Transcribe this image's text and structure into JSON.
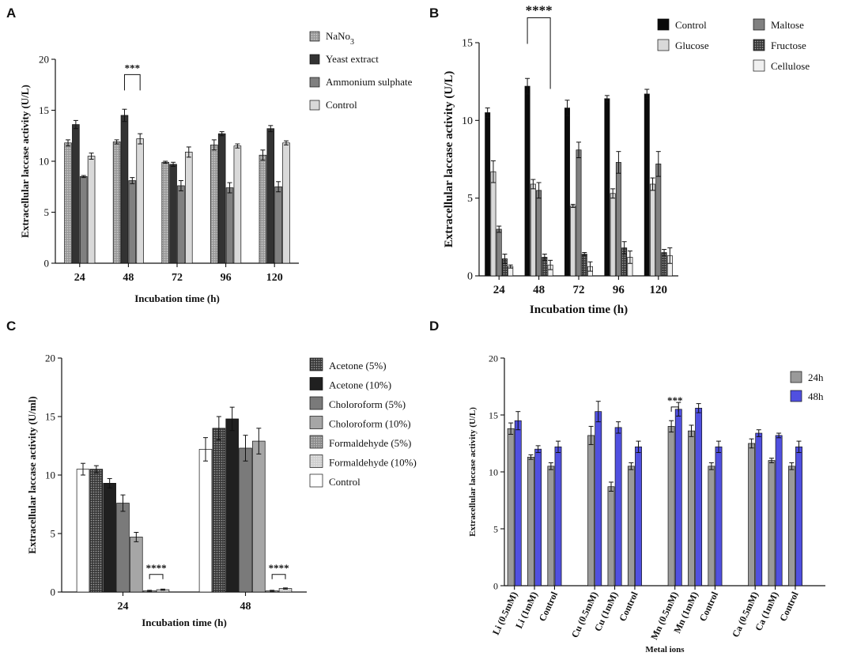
{
  "chart_data": [
    {
      "panel": "A",
      "type": "bar",
      "xlabel": "Incubation time (h)",
      "ylabel": "Extracellular laccase activity (U/L)",
      "ylim": [
        0,
        20
      ],
      "yticks": [
        0,
        5,
        10,
        15,
        20
      ],
      "categories": [
        "24",
        "48",
        "72",
        "96",
        "120"
      ],
      "series": [
        {
          "name": "NaNo3",
          "name_base": "NaNo",
          "name_sub": "3",
          "color": "#9a9a9a",
          "pattern": "dots",
          "values": [
            11.8,
            11.9,
            9.9,
            11.6,
            10.6
          ],
          "errors": [
            0.3,
            0.2,
            0.1,
            0.5,
            0.5
          ]
        },
        {
          "name": "Yeast extract",
          "color": "#333333",
          "pattern": "none",
          "values": [
            13.6,
            14.5,
            9.7,
            12.7,
            13.2
          ],
          "errors": [
            0.4,
            0.6,
            0.2,
            0.2,
            0.3
          ]
        },
        {
          "name": "Ammonium sulphate",
          "color": "#808080",
          "pattern": "none",
          "values": [
            8.5,
            8.1,
            7.6,
            7.4,
            7.5
          ],
          "errors": [
            0.1,
            0.3,
            0.5,
            0.5,
            0.5
          ]
        },
        {
          "name": "Control",
          "color": "#d9d9d9",
          "pattern": "none",
          "values": [
            10.5,
            12.2,
            10.9,
            11.5,
            11.8
          ],
          "errors": [
            0.3,
            0.5,
            0.5,
            0.2,
            0.2
          ]
        }
      ],
      "annotations": [
        {
          "text": "***",
          "category": 1,
          "from_series": 1,
          "to_series": 3,
          "y": 18.5
        }
      ]
    },
    {
      "panel": "B",
      "type": "bar",
      "xlabel": "Incubation time (h)",
      "ylabel": "Extracellular laccase activity (U/L)",
      "ylim": [
        0,
        15
      ],
      "yticks": [
        0,
        5,
        10,
        15
      ],
      "categories": [
        "24",
        "48",
        "72",
        "96",
        "120"
      ],
      "series": [
        {
          "name": "Control",
          "color": "#0a0a0a",
          "pattern": "none",
          "values": [
            10.5,
            12.2,
            10.8,
            11.4,
            11.7
          ],
          "errors": [
            0.3,
            0.5,
            0.5,
            0.2,
            0.3
          ]
        },
        {
          "name": "Glucose",
          "color": "#d9d9d9",
          "pattern": "none",
          "values": [
            6.7,
            5.9,
            4.5,
            5.3,
            5.9
          ],
          "errors": [
            0.7,
            0.3,
            0.1,
            0.3,
            0.4
          ]
        },
        {
          "name": "Maltose",
          "color": "#808080",
          "pattern": "none",
          "values": [
            3.0,
            5.5,
            8.1,
            7.3,
            7.2
          ],
          "errors": [
            0.2,
            0.5,
            0.5,
            0.7,
            0.8
          ]
        },
        {
          "name": "Fructose",
          "color": "#3a3a3a",
          "pattern": "dots",
          "values": [
            1.1,
            1.2,
            1.4,
            1.8,
            1.5
          ],
          "errors": [
            0.3,
            0.2,
            0.1,
            0.4,
            0.2
          ]
        },
        {
          "name": "Cellulose",
          "color": "#f0f0f0",
          "pattern": "none",
          "values": [
            0.6,
            0.7,
            0.6,
            1.2,
            1.3
          ],
          "errors": [
            0.1,
            0.3,
            0.3,
            0.4,
            0.5
          ]
        }
      ],
      "annotations": [
        {
          "text": "****",
          "category": 1,
          "from_series": 0,
          "to_series": 4,
          "y": 16.6
        }
      ]
    },
    {
      "panel": "C",
      "type": "bar",
      "xlabel": "Incubation time (h)",
      "ylabel": "Extracellular laccase activity (U/ml)",
      "ylim": [
        0,
        20
      ],
      "yticks": [
        0,
        5,
        10,
        15,
        20
      ],
      "categories": [
        "24",
        "48"
      ],
      "series": [
        {
          "name": "Control",
          "color": "#ffffff",
          "pattern": "none",
          "values": [
            10.5,
            12.2
          ],
          "errors": [
            0.5,
            1.0
          ]
        },
        {
          "name": "Acetone (5%)",
          "color": "#3a3a3a",
          "pattern": "dots",
          "values": [
            10.5,
            14.0
          ],
          "errors": [
            0.3,
            1.0
          ]
        },
        {
          "name": "Acetone (10%)",
          "color": "#202020",
          "pattern": "none",
          "values": [
            9.3,
            14.8
          ],
          "errors": [
            0.4,
            1.0
          ]
        },
        {
          "name": "Choloroform (5%)",
          "color": "#7a7a7a",
          "pattern": "none",
          "values": [
            7.6,
            12.3
          ],
          "errors": [
            0.7,
            1.1
          ]
        },
        {
          "name": "Choloroform (10%)",
          "color": "#a6a6a6",
          "pattern": "none",
          "values": [
            4.7,
            12.9
          ],
          "errors": [
            0.4,
            1.1
          ]
        },
        {
          "name": "Formaldehyde (5%)",
          "color": "#8c8c8c",
          "pattern": "dots",
          "values": [
            0.1,
            0.1
          ],
          "errors": [
            0.05,
            0.05
          ]
        },
        {
          "name": "Formaldehyde (10%)",
          "color": "#cfcfcf",
          "pattern": "dots",
          "values": [
            0.2,
            0.3
          ],
          "errors": [
            0.05,
            0.05
          ]
        }
      ],
      "legend_order": [
        1,
        2,
        3,
        4,
        5,
        6,
        0
      ],
      "annotations": [
        {
          "text": "****",
          "category": 0,
          "from_series": 5,
          "to_series": 6,
          "y": 1.5
        },
        {
          "text": "****",
          "category": 1,
          "from_series": 5,
          "to_series": 6,
          "y": 1.5
        }
      ]
    },
    {
      "panel": "D",
      "type": "bar",
      "xlabel": "Metal ions",
      "ylabel": "Extracellular laccase activity (U/L)",
      "ylim": [
        0,
        20
      ],
      "yticks": [
        0,
        5,
        10,
        15,
        20
      ],
      "categories": [
        "Li (0.5mM)",
        "Li (1mM)",
        "Control",
        "Cu (0.5mM)",
        "Cu (1mM)",
        "Control",
        "Mn (0.5mM)",
        "Mn (1mM)",
        "Control",
        "Ca (0.5mM)",
        "Ca (1mM)",
        "Control"
      ],
      "groups": [
        3,
        3,
        3,
        3
      ],
      "series": [
        {
          "name": "24h",
          "color": "#9a9a9a",
          "pattern": "none",
          "values": [
            13.8,
            11.3,
            10.5,
            13.2,
            8.7,
            10.5,
            14.0,
            13.6,
            10.5,
            12.5,
            11.0,
            10.5
          ],
          "errors": [
            0.5,
            0.2,
            0.3,
            0.8,
            0.4,
            0.3,
            0.5,
            0.5,
            0.3,
            0.4,
            0.2,
            0.3
          ]
        },
        {
          "name": "48h",
          "color": "#5050e0",
          "pattern": "none",
          "values": [
            14.5,
            12.0,
            12.2,
            15.3,
            13.9,
            12.2,
            15.5,
            15.6,
            12.2,
            13.4,
            13.2,
            12.2
          ],
          "errors": [
            0.8,
            0.3,
            0.5,
            0.9,
            0.5,
            0.5,
            0.6,
            0.4,
            0.5,
            0.3,
            0.2,
            0.5
          ]
        }
      ],
      "annotations": [
        {
          "text": "***",
          "category": 6,
          "from_series": 0,
          "to_series": 1,
          "y": 15.7
        }
      ]
    }
  ]
}
